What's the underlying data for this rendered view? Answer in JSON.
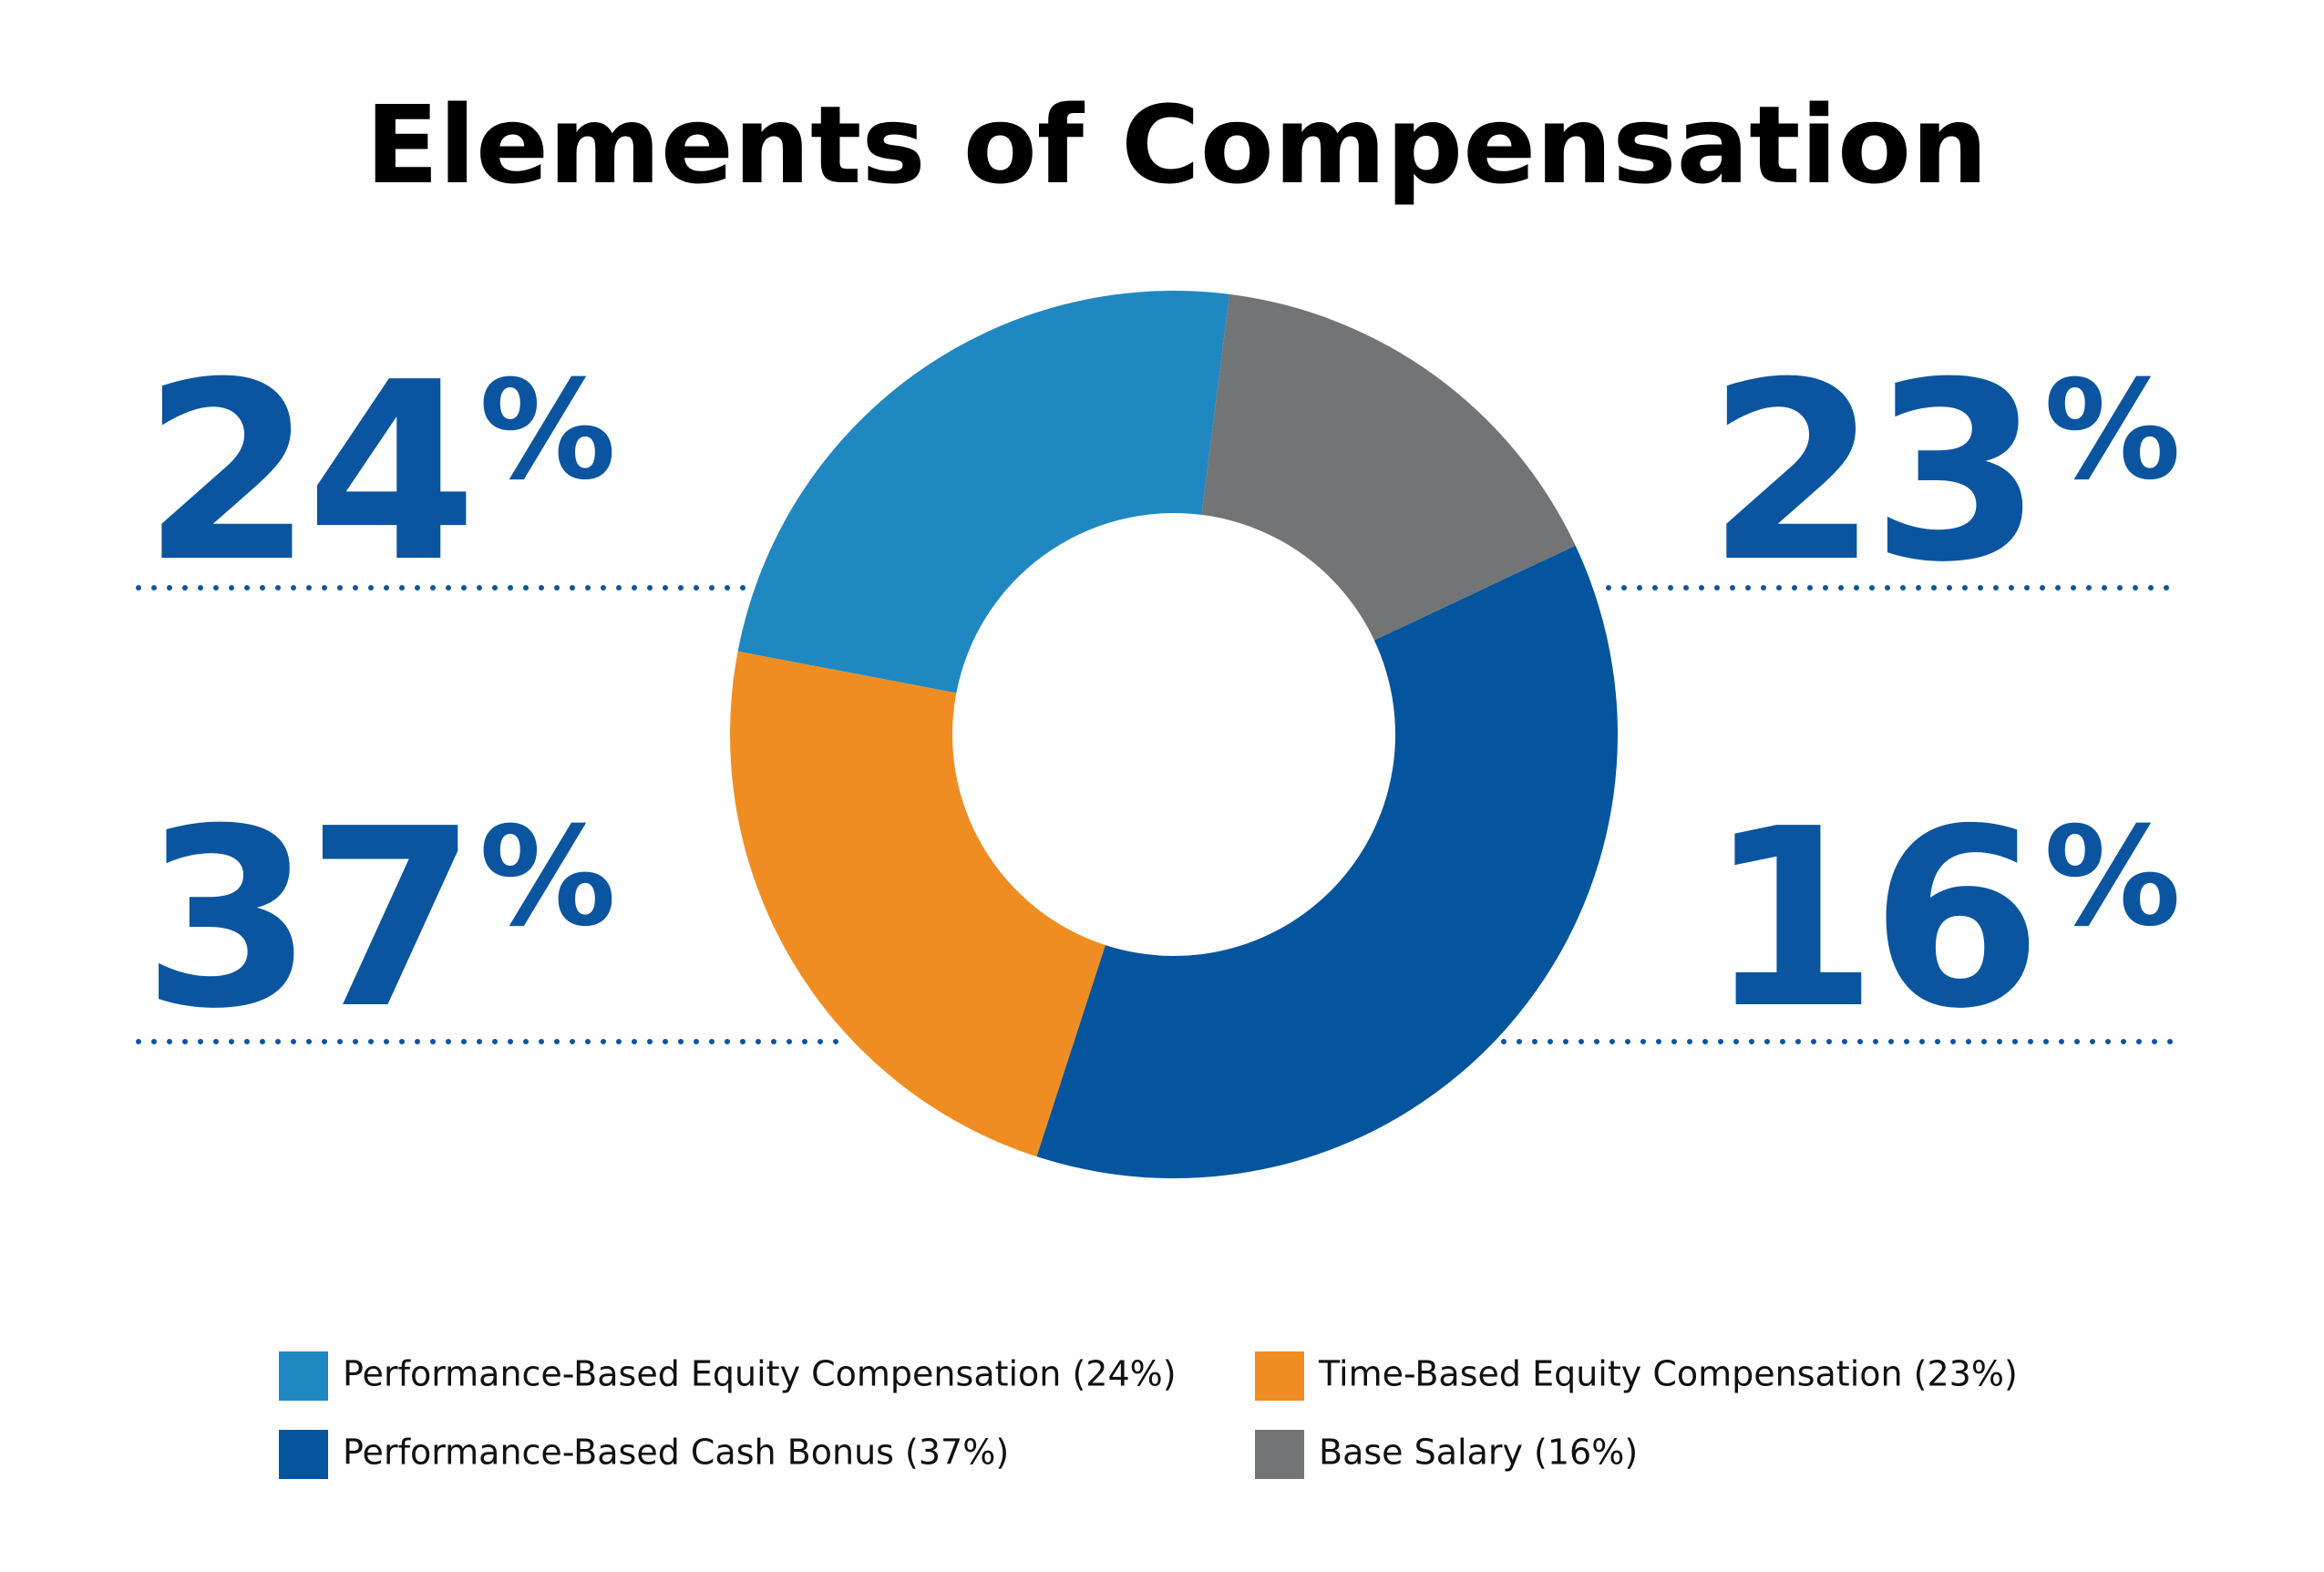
{
  "chart_data": {
    "type": "donut",
    "title": "Elements of Compensation",
    "categories": [
      "Performance-Based Equity Compensation (24%)",
      "Time-Based Equity Compensation (23%)",
      "Performance-Based Cash Bonus (37%)",
      "Base Salary (16%)"
    ],
    "values": [
      24,
      23,
      37,
      16
    ],
    "value_labels": [
      "24%",
      "23%",
      "37%",
      "16%"
    ],
    "colors": [
      "#1f88c0",
      "#f08d22",
      "#04559e",
      "#737476"
    ]
  }
}
